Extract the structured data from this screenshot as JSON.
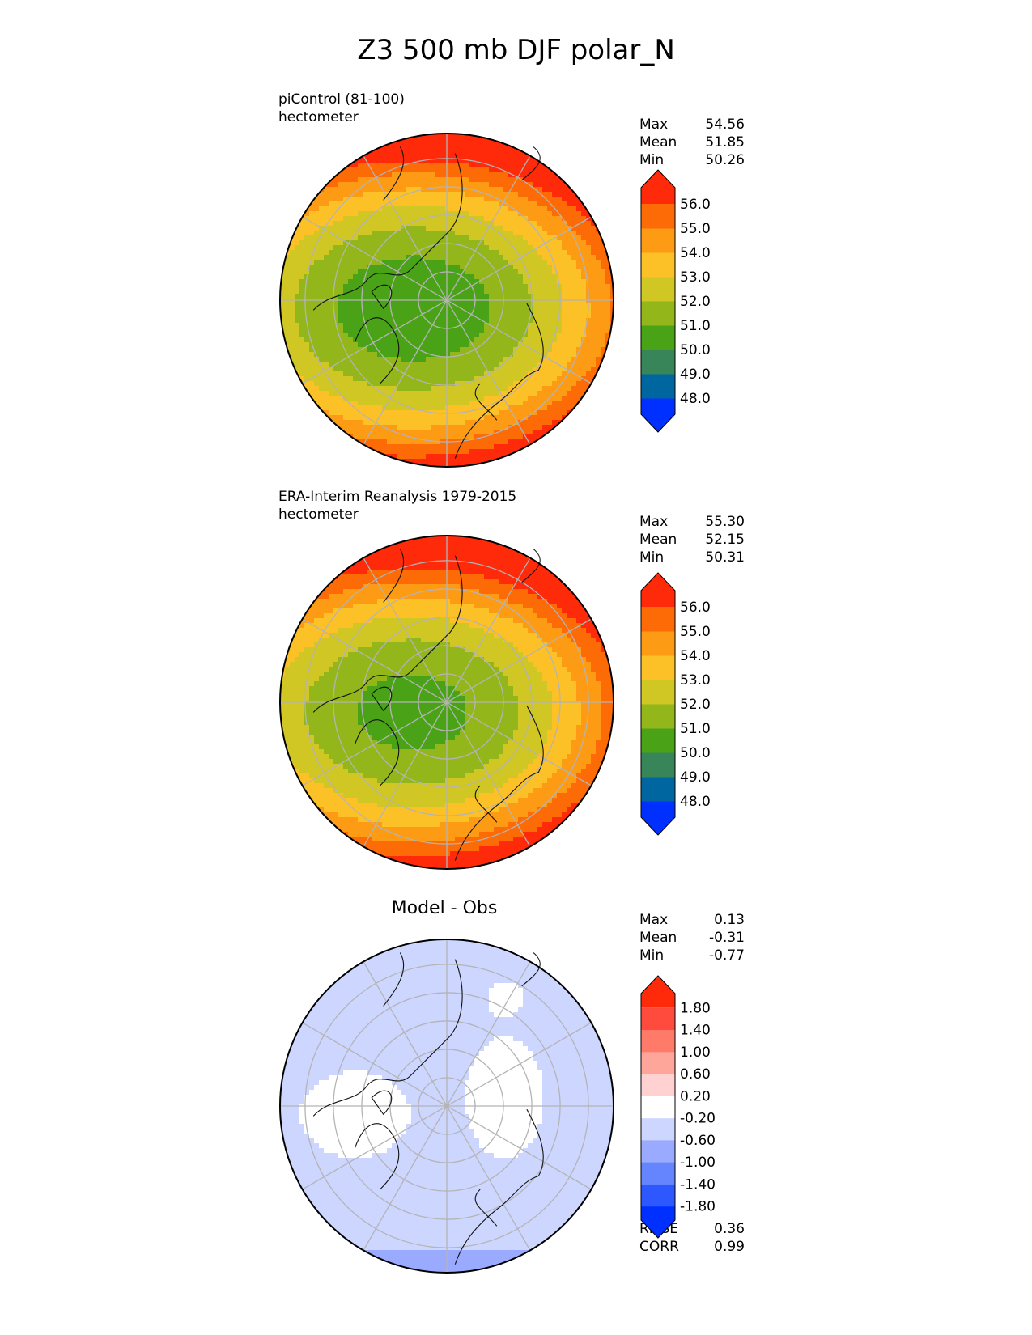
{
  "title": "Z3 500 mb DJF polar_N",
  "colors": {
    "abs_levels": [
      "#0030ff",
      "#0066a0",
      "#38855a",
      "#4aa316",
      "#93b61b",
      "#d0c624",
      "#fcc126",
      "#fd9b15",
      "#fd6b07",
      "#ff2a0a"
    ],
    "diff_levels": [
      "#0030ff",
      "#2e58ff",
      "#6585ff",
      "#99aaff",
      "#ccd6ff",
      "#ffffff",
      "#ffd1d1",
      "#ffa69a",
      "#ff7a68",
      "#ff4b3e",
      "#ff2a0a"
    ],
    "land_outline": "#111111",
    "grid": "#b4b4b4"
  },
  "panels": [
    {
      "label_line1": "piControl (81-100)",
      "label_line2": "hectometer",
      "stats": {
        "max_label": "Max",
        "max": "54.56",
        "mean_label": "Mean",
        "mean": "51.85",
        "min_label": "Min",
        "min": "50.26"
      }
    },
    {
      "label_line1": "ERA-Interim Reanalysis 1979-2015",
      "label_line2": "hectometer",
      "stats": {
        "max_label": "Max",
        "max": "55.30",
        "mean_label": "Mean",
        "mean": "52.15",
        "min_label": "Min",
        "min": "50.31"
      }
    },
    {
      "title": "Model - Obs",
      "stats": {
        "max_label": "Max",
        "max": "0.13",
        "mean_label": "Mean",
        "mean": "-0.31",
        "min_label": "Min",
        "min": "-0.77"
      },
      "rmse_label": "RMSE",
      "rmse": "0.36",
      "corr_label": "CORR",
      "corr": "0.99"
    }
  ],
  "chart_data": [
    {
      "type": "heatmap",
      "projection": "north polar stereographic",
      "field": "Z3 500 mb",
      "units": "hectometer",
      "colorbar": {
        "ticks": [
          48.0,
          49.0,
          50.0,
          51.0,
          52.0,
          53.0,
          54.0,
          55.0,
          56.0
        ],
        "tick_labels": [
          "48.0",
          "49.0",
          "50.0",
          "51.0",
          "52.0",
          "53.0",
          "54.0",
          "55.0",
          "56.0"
        ],
        "extend": "both"
      },
      "max": 54.56,
      "mean": 51.85,
      "min": 50.26
    },
    {
      "type": "heatmap",
      "projection": "north polar stereographic",
      "field": "Z3 500 mb",
      "units": "hectometer",
      "colorbar": {
        "ticks": [
          48.0,
          49.0,
          50.0,
          51.0,
          52.0,
          53.0,
          54.0,
          55.0,
          56.0
        ],
        "tick_labels": [
          "48.0",
          "49.0",
          "50.0",
          "51.0",
          "52.0",
          "53.0",
          "54.0",
          "55.0",
          "56.0"
        ],
        "extend": "both"
      },
      "max": 55.3,
      "mean": 52.15,
      "min": 50.31
    },
    {
      "type": "heatmap",
      "projection": "north polar stereographic",
      "title": "Model - Obs",
      "colorbar": {
        "ticks": [
          -1.8,
          -1.4,
          -1.0,
          -0.6,
          -0.2,
          0.2,
          0.6,
          1.0,
          1.4,
          1.8
        ],
        "tick_labels": [
          "-1.80",
          "-1.40",
          "-1.00",
          "-0.60",
          "-0.20",
          "0.20",
          "0.60",
          "1.00",
          "1.40",
          "1.80"
        ],
        "extend": "both"
      },
      "max": 0.13,
      "mean": -0.31,
      "min": -0.77,
      "rmse": 0.36,
      "corr": 0.99
    }
  ]
}
